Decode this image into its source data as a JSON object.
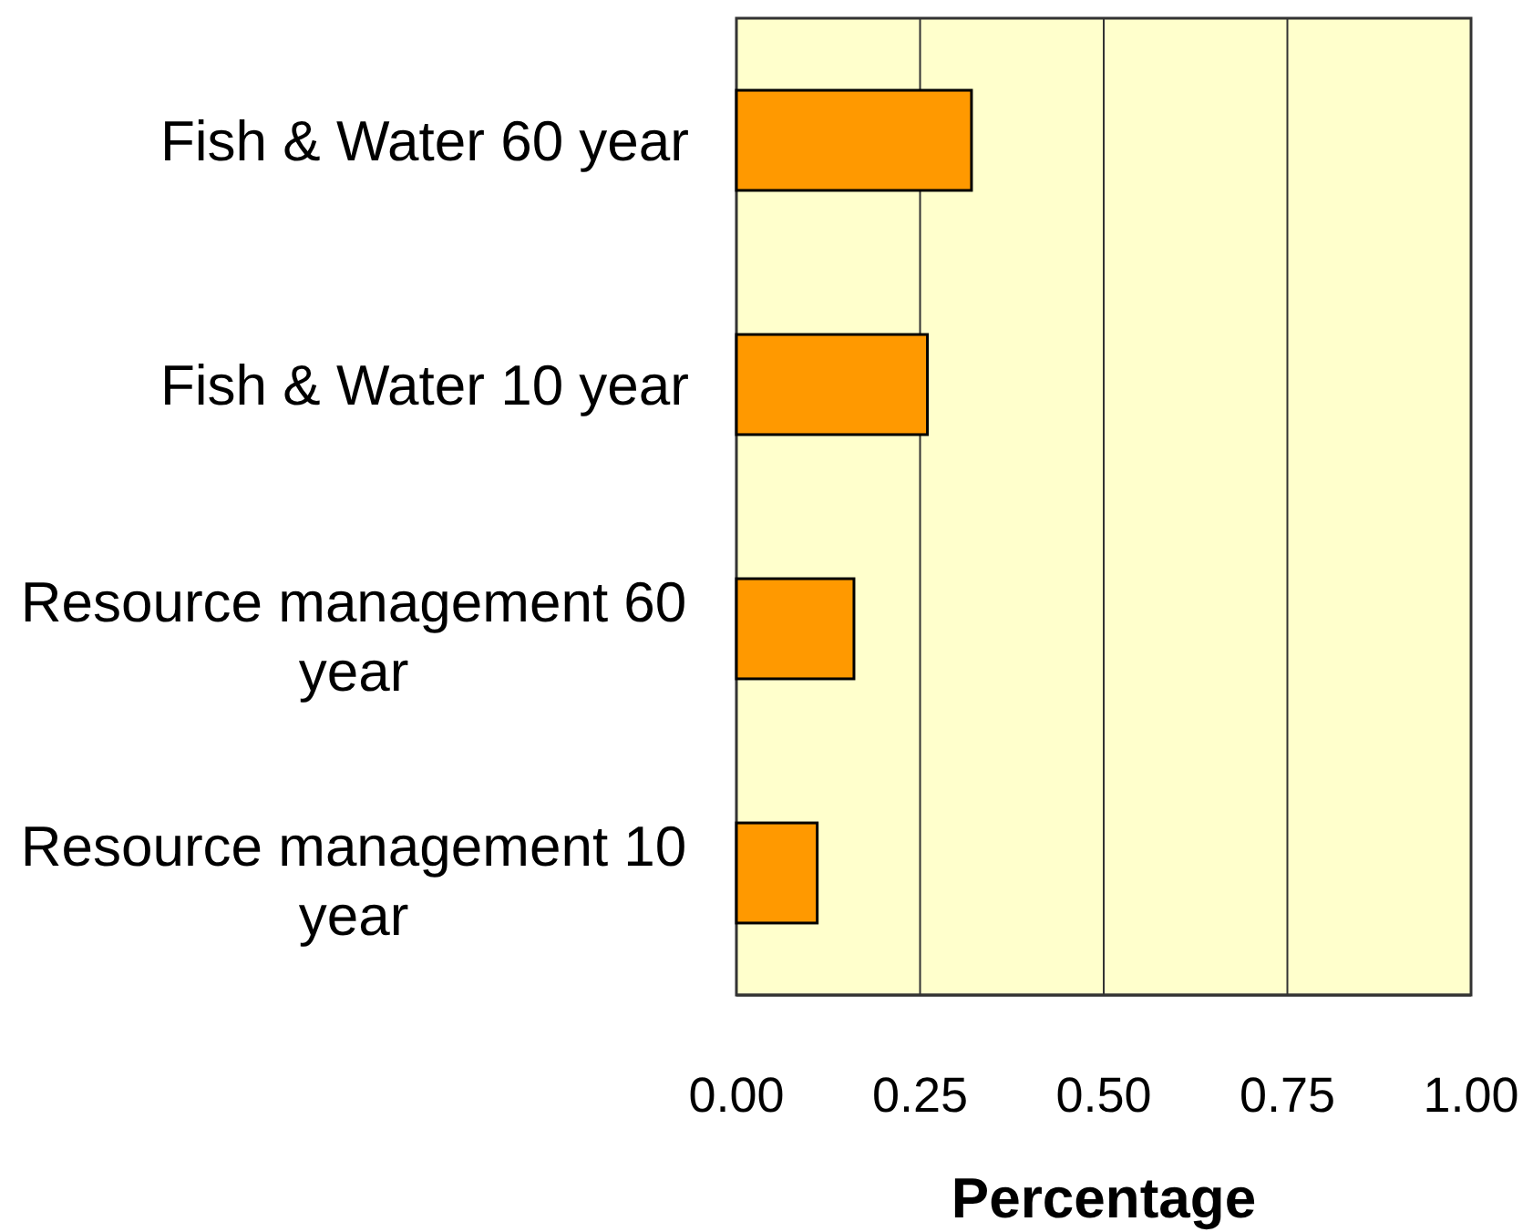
{
  "chart_data": {
    "type": "bar",
    "orientation": "horizontal",
    "xlabel": "Percentage",
    "categories": [
      "Fish & Water 60 year",
      "Fish & Water 10 year",
      "Resource management 60 year",
      "Resource management 10 year"
    ],
    "values": [
      0.32,
      0.26,
      0.16,
      0.11
    ],
    "color": "#ff9900",
    "xlim": [
      0,
      1
    ],
    "xticks": [
      {
        "value": 0,
        "label": "0.00"
      },
      {
        "value": 0.25,
        "label": "0.25"
      },
      {
        "value": 0.5,
        "label": "0.50"
      },
      {
        "value": 0.75,
        "label": "0.75"
      },
      {
        "value": 1,
        "label": "1.00"
      }
    ],
    "grid": "x"
  }
}
